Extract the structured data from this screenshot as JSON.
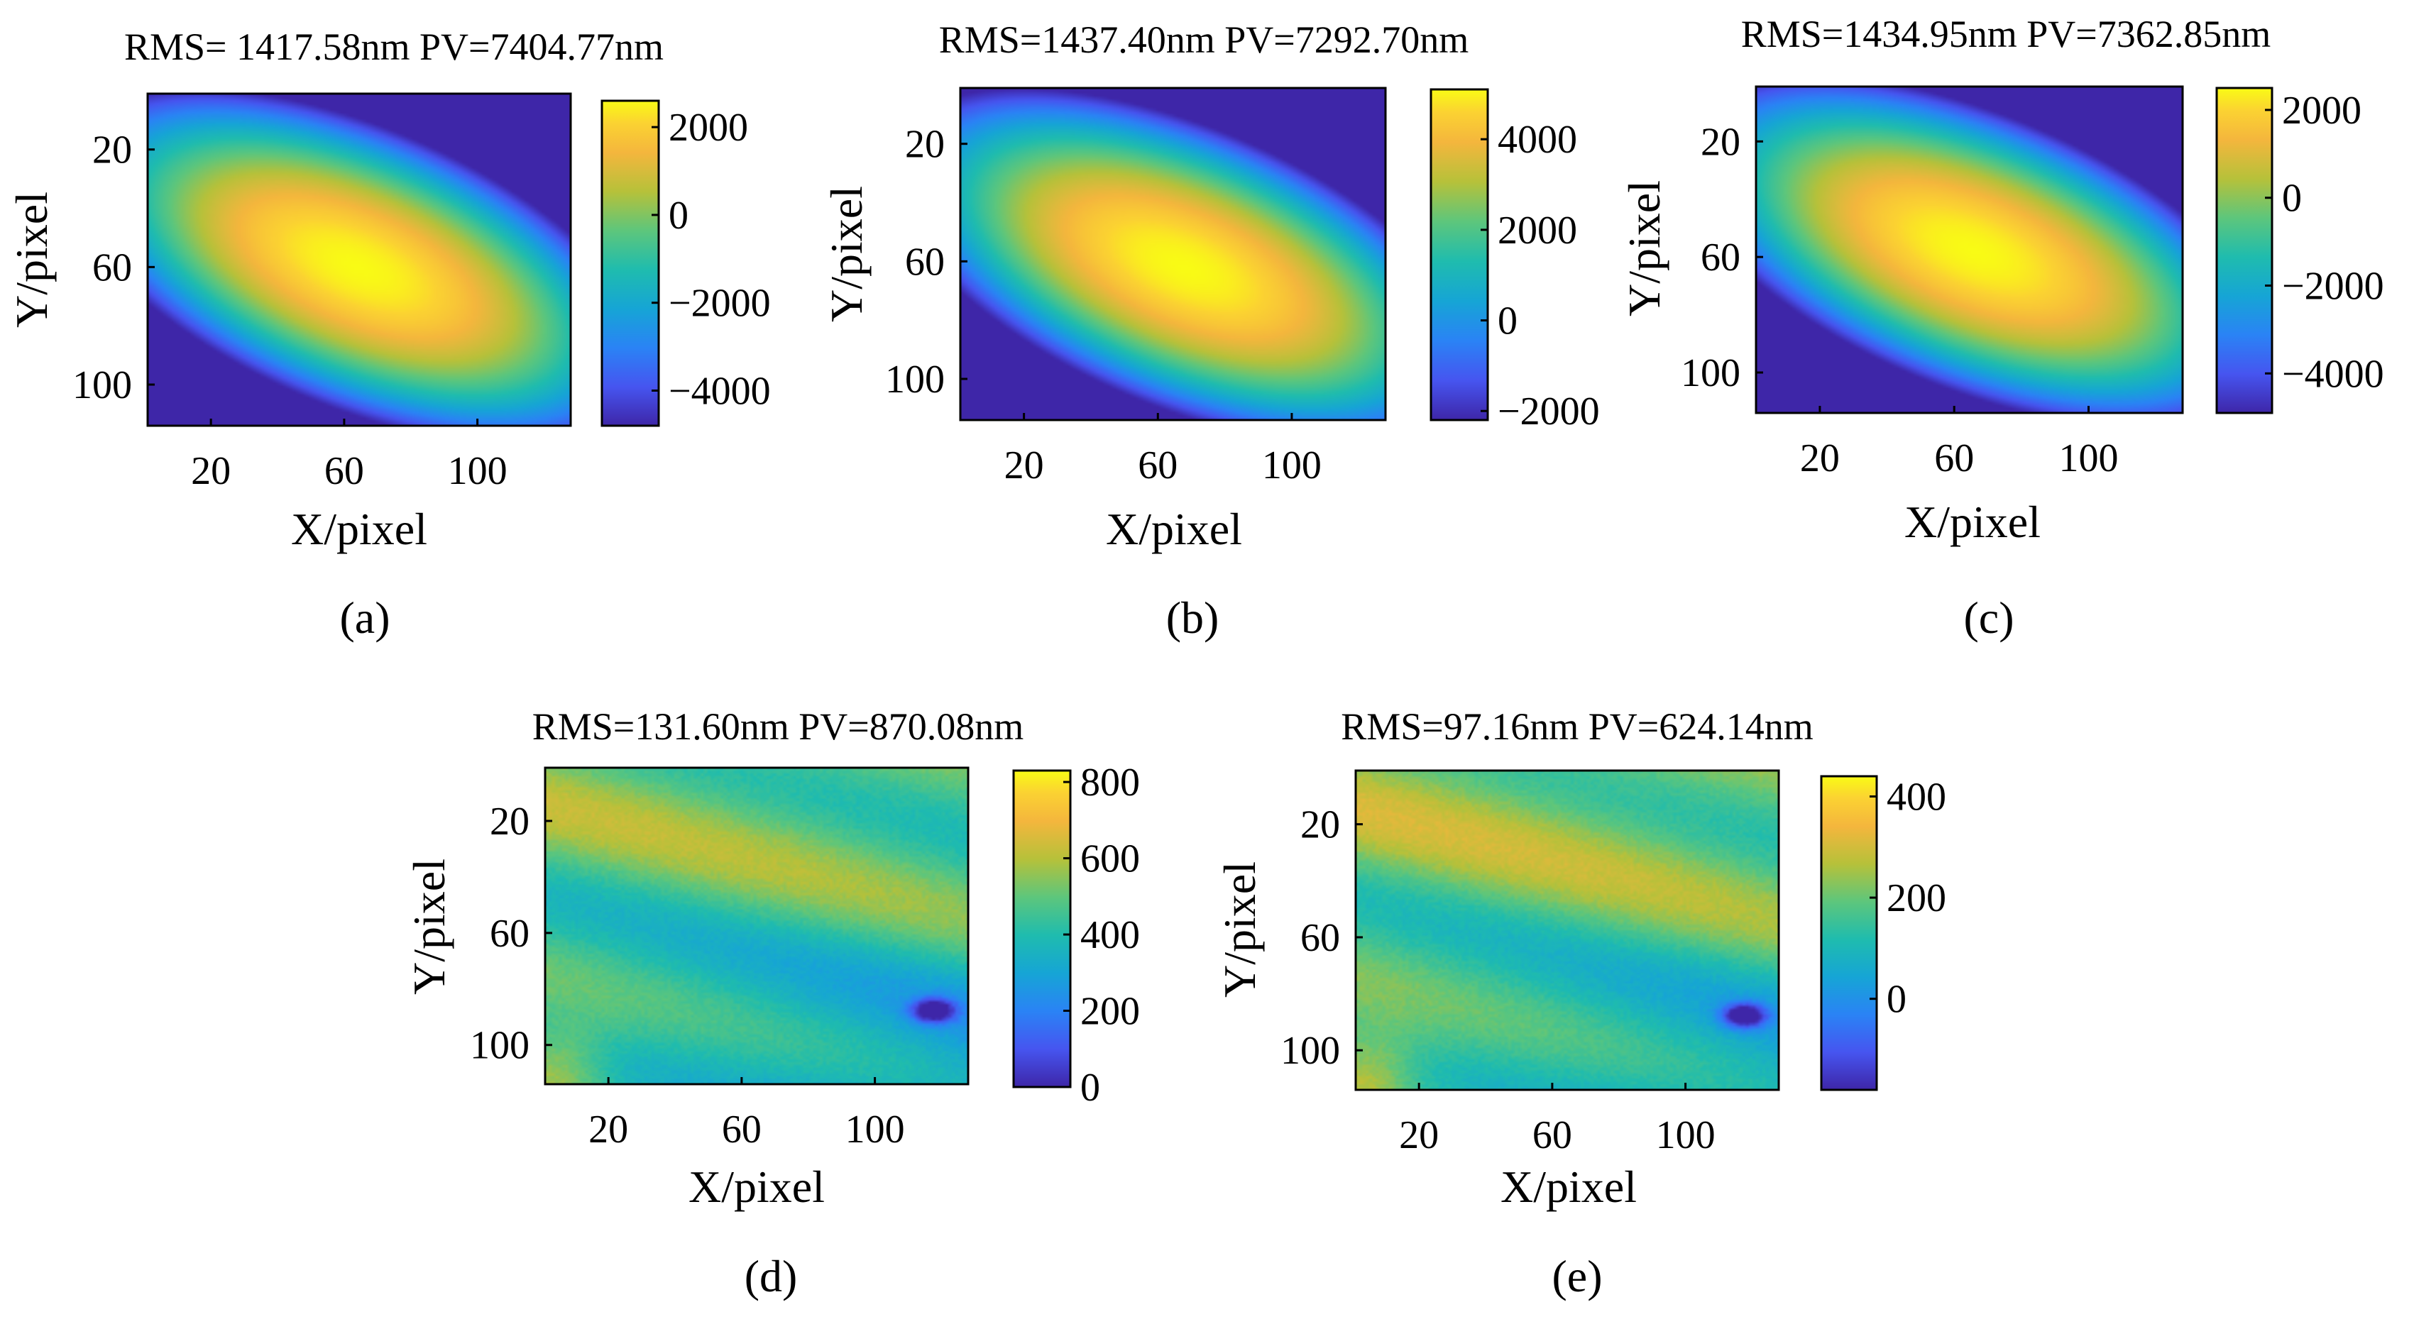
{
  "chart_data": [
    {
      "id": "a",
      "type": "heatmap",
      "title": "RMS= 1417.58nm PV=7404.77nm",
      "xlabel": "X/pixel",
      "ylabel": "Y/pixel",
      "caption": "(a)",
      "x_range": [
        1,
        128
      ],
      "y_range": [
        1,
        114
      ],
      "xticks": [
        20,
        60,
        100
      ],
      "yticks": [
        20,
        60,
        100
      ],
      "colorbar": {
        "min": -4800,
        "max": 2600,
        "ticks": [
          2000,
          0,
          -2000,
          -4000
        ]
      },
      "surface": {
        "kind": "tilted-bowl",
        "center_x": 64,
        "center_y": 60,
        "angle_deg": -32,
        "peak": 2600,
        "floor": -4800
      }
    },
    {
      "id": "b",
      "type": "heatmap",
      "title": "RMS=1437.40nm PV=7292.70nm",
      "xlabel": "X/pixel",
      "ylabel": "Y/pixel",
      "caption": "(b)",
      "x_range": [
        1,
        128
      ],
      "y_range": [
        1,
        114
      ],
      "xticks": [
        20,
        60,
        100
      ],
      "yticks": [
        20,
        60,
        100
      ],
      "colorbar": {
        "min": -2200,
        "max": 5100,
        "ticks": [
          4000,
          2000,
          0,
          -2000
        ]
      },
      "surface": {
        "kind": "tilted-bowl",
        "center_x": 68,
        "center_y": 62,
        "angle_deg": -32,
        "peak": 5100,
        "floor": -2200
      }
    },
    {
      "id": "c",
      "type": "heatmap",
      "title": "RMS=1434.95nm PV=7362.85nm",
      "xlabel": "X/pixel",
      "ylabel": "Y/pixel",
      "caption": "(c)",
      "x_range": [
        1,
        128
      ],
      "y_range": [
        1,
        114
      ],
      "xticks": [
        20,
        60,
        100
      ],
      "yticks": [
        20,
        60,
        100
      ],
      "colorbar": {
        "min": -4900,
        "max": 2500,
        "ticks": [
          2000,
          0,
          -2000,
          -4000
        ]
      },
      "surface": {
        "kind": "tilted-bowl",
        "center_x": 66,
        "center_y": 58,
        "angle_deg": -32,
        "peak": 2500,
        "floor": -4900
      }
    },
    {
      "id": "d",
      "type": "heatmap",
      "title": "RMS=131.60nm PV=870.08nm",
      "xlabel": "X/pixel",
      "ylabel": "Y/pixel",
      "caption": "(d)",
      "x_range": [
        1,
        128
      ],
      "y_range": [
        1,
        114
      ],
      "xticks": [
        20,
        60,
        100
      ],
      "yticks": [
        20,
        60,
        100
      ],
      "colorbar": {
        "min": 0,
        "max": 830,
        "ticks": [
          800,
          600,
          400,
          200,
          0
        ]
      },
      "surface": {
        "kind": "residual",
        "mean": 480,
        "amplitude": 170,
        "dark_spot": [
          118,
          88
        ]
      }
    },
    {
      "id": "e",
      "type": "heatmap",
      "title": "RMS=97.16nm PV=624.14nm",
      "xlabel": "X/pixel",
      "ylabel": "Y/pixel",
      "caption": "(e)",
      "x_range": [
        1,
        128
      ],
      "y_range": [
        1,
        114
      ],
      "xticks": [
        20,
        60,
        100
      ],
      "yticks": [
        20,
        60,
        100
      ],
      "colorbar": {
        "min": -180,
        "max": 440,
        "ticks": [
          400,
          200,
          0
        ]
      },
      "surface": {
        "kind": "residual",
        "mean": 200,
        "amplitude": 130,
        "dark_spot": [
          118,
          88
        ]
      }
    }
  ]
}
